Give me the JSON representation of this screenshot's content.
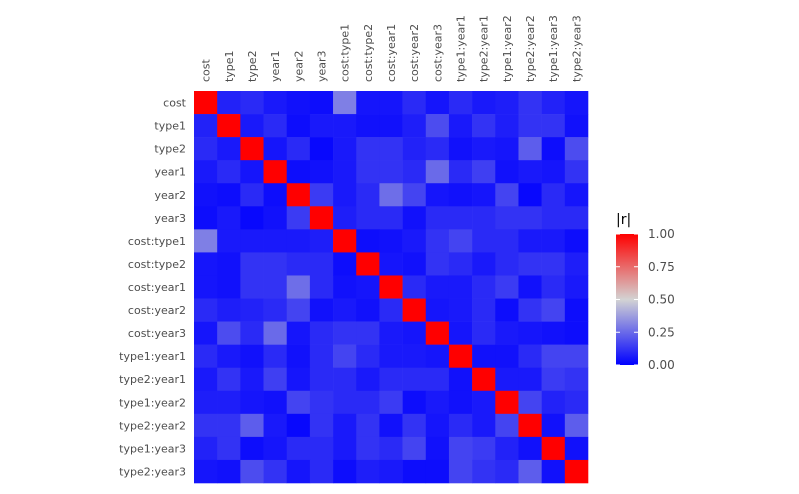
{
  "chart_data": {
    "type": "heatmap",
    "title": "",
    "xlabel": "",
    "ylabel": "",
    "variables": [
      "cost",
      "type1",
      "type2",
      "year1",
      "year2",
      "year3",
      "cost:type1",
      "cost:type2",
      "cost:year1",
      "cost:year2",
      "cost:year3",
      "type1:year1",
      "type2:year1",
      "type1:year2",
      "type2:year2",
      "type1:year3",
      "type2:year3"
    ],
    "values": [
      [
        1.0,
        0.08,
        0.1,
        0.06,
        0.04,
        0.03,
        0.3,
        0.05,
        0.05,
        0.1,
        0.05,
        0.1,
        0.06,
        0.07,
        0.12,
        0.08,
        0.05
      ],
      [
        0.08,
        1.0,
        0.06,
        0.1,
        0.03,
        0.06,
        0.06,
        0.04,
        0.04,
        0.07,
        0.18,
        0.06,
        0.12,
        0.07,
        0.12,
        0.12,
        0.04
      ],
      [
        0.1,
        0.06,
        1.0,
        0.05,
        0.1,
        0.02,
        0.06,
        0.12,
        0.12,
        0.08,
        0.1,
        0.04,
        0.06,
        0.05,
        0.22,
        0.03,
        0.18
      ],
      [
        0.06,
        0.1,
        0.05,
        1.0,
        0.03,
        0.04,
        0.06,
        0.12,
        0.12,
        0.1,
        0.25,
        0.1,
        0.15,
        0.04,
        0.06,
        0.05,
        0.12
      ],
      [
        0.04,
        0.03,
        0.1,
        0.03,
        1.0,
        0.14,
        0.06,
        0.1,
        0.26,
        0.16,
        0.05,
        0.04,
        0.05,
        0.16,
        0.02,
        0.1,
        0.05
      ],
      [
        0.03,
        0.06,
        0.02,
        0.04,
        0.14,
        1.0,
        0.07,
        0.1,
        0.1,
        0.04,
        0.1,
        0.1,
        0.1,
        0.12,
        0.12,
        0.1,
        0.1
      ],
      [
        0.3,
        0.06,
        0.06,
        0.06,
        0.06,
        0.07,
        1.0,
        0.03,
        0.04,
        0.06,
        0.12,
        0.16,
        0.1,
        0.1,
        0.06,
        0.06,
        0.03
      ],
      [
        0.05,
        0.04,
        0.12,
        0.12,
        0.1,
        0.1,
        0.03,
        1.0,
        0.05,
        0.04,
        0.12,
        0.1,
        0.06,
        0.1,
        0.12,
        0.12,
        0.07
      ],
      [
        0.05,
        0.04,
        0.12,
        0.12,
        0.26,
        0.1,
        0.04,
        0.05,
        1.0,
        0.1,
        0.06,
        0.06,
        0.1,
        0.14,
        0.04,
        0.1,
        0.06
      ],
      [
        0.1,
        0.07,
        0.08,
        0.1,
        0.16,
        0.04,
        0.06,
        0.04,
        0.1,
        1.0,
        0.05,
        0.06,
        0.1,
        0.03,
        0.12,
        0.16,
        0.03
      ],
      [
        0.05,
        0.18,
        0.1,
        0.25,
        0.05,
        0.1,
        0.12,
        0.12,
        0.06,
        0.05,
        1.0,
        0.05,
        0.1,
        0.06,
        0.05,
        0.04,
        0.03
      ],
      [
        0.1,
        0.06,
        0.04,
        0.1,
        0.04,
        0.1,
        0.16,
        0.1,
        0.06,
        0.06,
        0.05,
        1.0,
        0.04,
        0.04,
        0.1,
        0.16,
        0.16
      ],
      [
        0.06,
        0.12,
        0.06,
        0.15,
        0.05,
        0.1,
        0.1,
        0.06,
        0.1,
        0.1,
        0.1,
        0.04,
        1.0,
        0.06,
        0.06,
        0.14,
        0.12
      ],
      [
        0.07,
        0.07,
        0.05,
        0.04,
        0.16,
        0.12,
        0.1,
        0.1,
        0.14,
        0.03,
        0.06,
        0.04,
        0.06,
        1.0,
        0.16,
        0.08,
        0.1
      ],
      [
        0.12,
        0.12,
        0.22,
        0.06,
        0.02,
        0.12,
        0.06,
        0.12,
        0.04,
        0.12,
        0.05,
        0.1,
        0.06,
        0.16,
        1.0,
        0.04,
        0.22
      ],
      [
        0.08,
        0.12,
        0.03,
        0.05,
        0.1,
        0.1,
        0.06,
        0.12,
        0.1,
        0.16,
        0.04,
        0.16,
        0.14,
        0.08,
        0.04,
        1.0,
        0.04
      ],
      [
        0.05,
        0.04,
        0.18,
        0.12,
        0.05,
        0.1,
        0.03,
        0.07,
        0.06,
        0.03,
        0.03,
        0.16,
        0.12,
        0.1,
        0.22,
        0.04,
        1.0
      ]
    ],
    "color_scale": {
      "low": "#0000ff",
      "mid": "#d3d3d3",
      "high": "#ff0000",
      "midpoint": 0.5,
      "limits": [
        0,
        1
      ]
    },
    "legend": {
      "title": "|r|",
      "placement": "right",
      "ticks": [
        1.0,
        0.75,
        0.5,
        0.25,
        0.0
      ],
      "tick_labels": [
        "1.00",
        "0.75",
        "0.50",
        "0.25",
        "0.00"
      ]
    },
    "grid": false
  }
}
